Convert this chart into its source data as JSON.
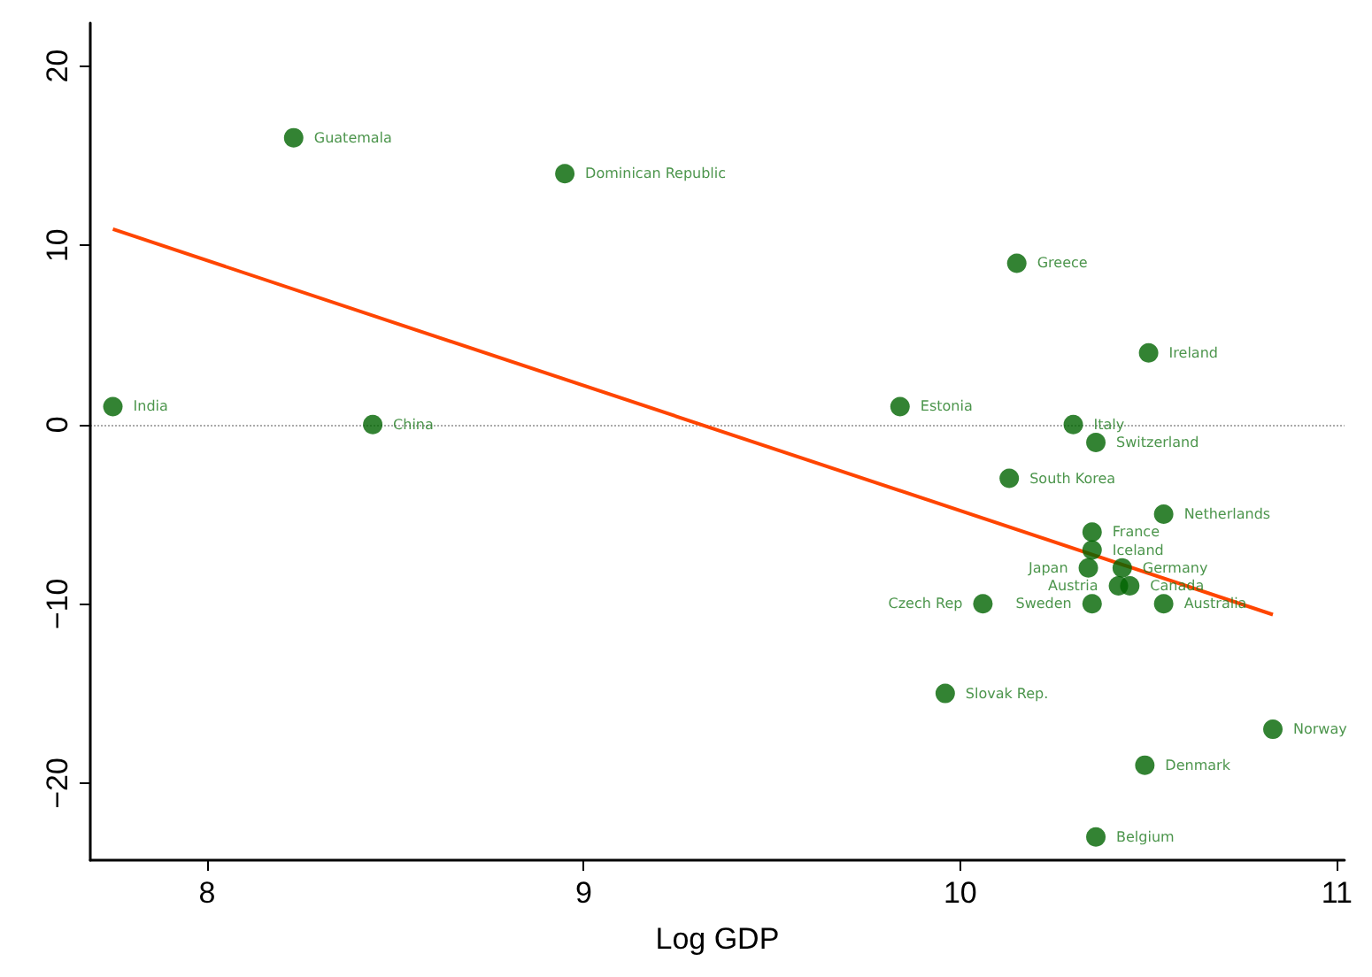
{
  "chart_data": {
    "type": "scatter",
    "xlabel": "Log GDP",
    "xlim": [
      7.69,
      11.02
    ],
    "ylim": [
      -24.3,
      22.4
    ],
    "xticks": [
      8,
      9,
      10,
      11
    ],
    "yticks": [
      -20,
      -10,
      0,
      10,
      20
    ],
    "grid": false,
    "series": [
      {
        "marker": "circle",
        "color": "#006400",
        "x": [
          7.75,
          8.23,
          8.44,
          8.95,
          9.84,
          10.15,
          10.5,
          10.3,
          10.36,
          10.13,
          10.54,
          10.35,
          10.35,
          10.34,
          10.43,
          10.42,
          10.45,
          10.06,
          10.35,
          10.54,
          9.96,
          10.83,
          10.49,
          10.36
        ],
        "values": [
          1,
          16,
          0,
          14,
          1,
          9,
          4,
          0,
          -1,
          -3,
          -5,
          -6,
          -7,
          -8,
          -8,
          -9,
          -9,
          -10,
          -10,
          -10,
          -15,
          -17,
          -19,
          -23
        ],
        "value_labels": [
          "India",
          "Guatemala",
          "China",
          "Dominican Republic",
          "Estonia",
          "Greece",
          "Ireland",
          "Italy",
          "Switzerland",
          "South Korea",
          "Netherlands",
          "France",
          "Iceland",
          "Japan",
          "Germany",
          "Austria",
          "Canada",
          "Czech Rep",
          "Sweden",
          "Australia",
          "Slovak Rep.",
          "Norway",
          "Denmark",
          "Belgium"
        ]
      },
      {
        "type": "line",
        "marker": "none",
        "color": "#ff4500",
        "x": [
          7.75,
          10.83
        ],
        "values": [
          10.9,
          -10.6
        ]
      }
    ],
    "ref_lines": [
      {
        "axis": "y",
        "value": 0,
        "color": "#aaaaaa",
        "line_style": "dotted"
      }
    ]
  }
}
